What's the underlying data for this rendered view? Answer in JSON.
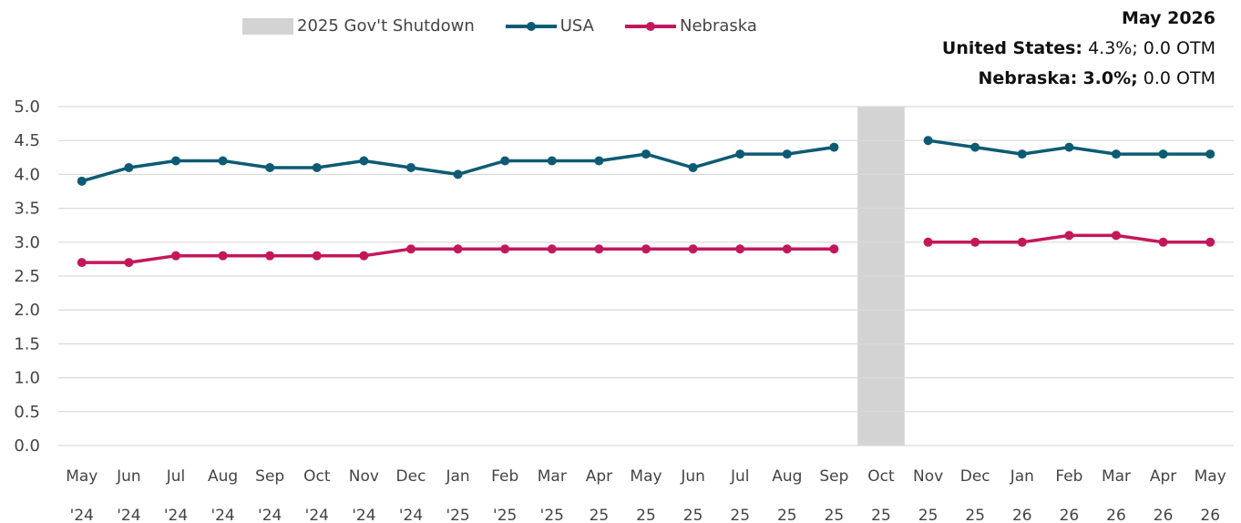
{
  "legend": {
    "shutdown_label": "2025 Gov't Shutdown",
    "usa_label": "USA",
    "nebraska_label": "Nebraska"
  },
  "summary": {
    "title": "May 2026",
    "us_label": "United States:",
    "us_value": "4.3%; 0.0 OTM",
    "ne_label": "Nebraska:",
    "ne_value_bold": "3.0%;",
    "ne_value_rest": "0.0 OTM"
  },
  "colors": {
    "usa": "#0c5b73",
    "nebraska": "#c2185b",
    "shutdown": "#d3d3d3",
    "grid": "#d9d9d9"
  },
  "chart_data": {
    "type": "line",
    "x_month": [
      "May",
      "Jun",
      "Jul",
      "Aug",
      "Sep",
      "Oct",
      "Nov",
      "Dec",
      "Jan",
      "Feb",
      "Mar",
      "Apr",
      "May",
      "Jun",
      "Jul",
      "Aug",
      "Sep",
      "Oct",
      "Nov",
      "Dec",
      "Jan",
      "Feb",
      "Mar",
      "Apr",
      "May"
    ],
    "x_year": [
      "'24",
      "'24",
      "'24",
      "'24",
      "'24",
      "'24",
      "'24",
      "'24",
      "'25",
      "'25",
      "'25",
      "25",
      "25",
      "25",
      "25",
      "25",
      "25",
      "25",
      "25",
      "25",
      "26",
      "26",
      "26",
      "26",
      "26"
    ],
    "ylim": [
      0,
      5.0
    ],
    "yticks": [
      "0.0",
      "0.5",
      "1.0",
      "1.5",
      "2.0",
      "2.5",
      "3.0",
      "3.5",
      "4.0",
      "4.5",
      "5.0"
    ],
    "shutdown_index": 17,
    "series": [
      {
        "name": "USA",
        "values": [
          3.9,
          4.1,
          4.2,
          4.2,
          4.1,
          4.1,
          4.2,
          4.1,
          4.0,
          4.2,
          4.2,
          4.2,
          4.3,
          4.1,
          4.3,
          4.3,
          4.4,
          null,
          4.5,
          4.4,
          4.3,
          4.4,
          4.3,
          4.3,
          4.3
        ]
      },
      {
        "name": "Nebraska",
        "values": [
          2.7,
          2.7,
          2.8,
          2.8,
          2.8,
          2.8,
          2.8,
          2.9,
          2.9,
          2.9,
          2.9,
          2.9,
          2.9,
          2.9,
          2.9,
          2.9,
          2.9,
          null,
          3.0,
          3.0,
          3.0,
          3.1,
          3.1,
          3.0,
          3.0
        ]
      }
    ]
  }
}
